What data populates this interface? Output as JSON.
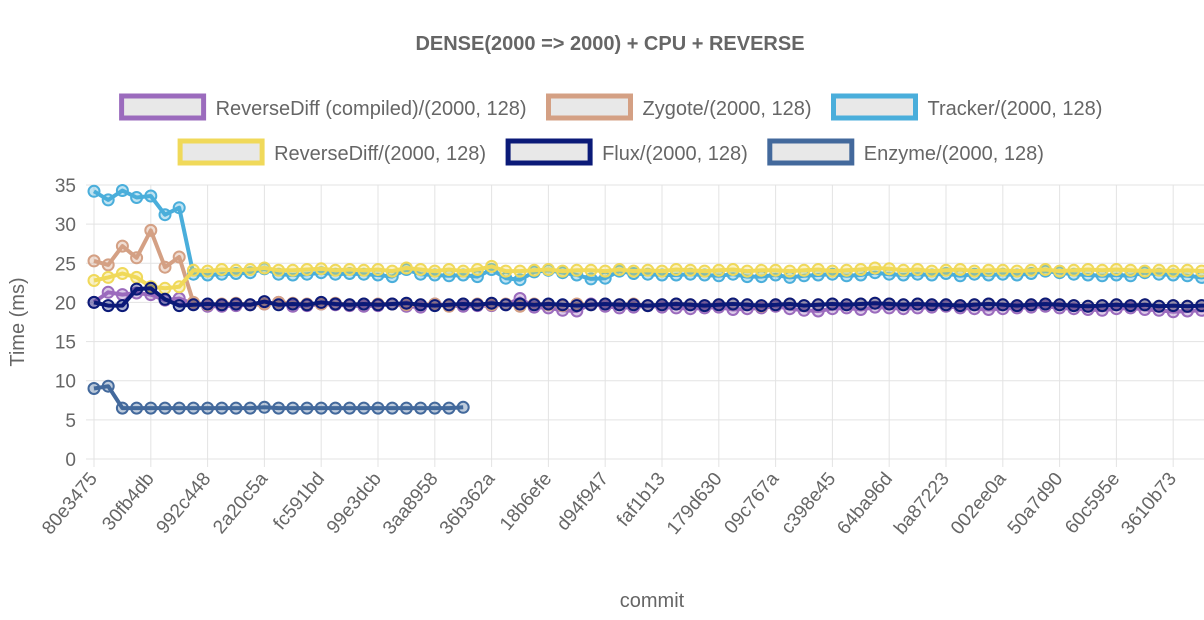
{
  "chart_data": {
    "type": "line",
    "title": "DENSE(2000 => 2000) + CPU + REVERSE",
    "xlabel": "commit",
    "ylabel": "Time (ms)",
    "ylim": [
      0,
      35
    ],
    "yticks": [
      0,
      5,
      10,
      15,
      20,
      25,
      30,
      35
    ],
    "grid": true,
    "legend_position": "top",
    "x_tick_labels": [
      "80e3475",
      "30fb4db",
      "992c448",
      "2a20c5a",
      "fc591bd",
      "99e3dcb",
      "3aa8958",
      "36b362a",
      "18b6efe",
      "d94f947",
      "faf1b13",
      "179d630",
      "09c767a",
      "c398e45",
      "64ba96d",
      "ba87223",
      "002ee0a",
      "50a7d90",
      "60c595e",
      "3610b73"
    ],
    "series": [
      {
        "name": "ReverseDiff (compiled)/(2000, 128)",
        "color": "#9b6bbd",
        "values": [
          20.0,
          21.3,
          21.0,
          21.2,
          21.0,
          20.3,
          20.5,
          19.8,
          19.5,
          19.5,
          19.6,
          19.7,
          19.8,
          20.0,
          19.5,
          19.6,
          19.8,
          19.7,
          19.6,
          19.5,
          19.6,
          19.8,
          19.5,
          19.4,
          19.8,
          19.6,
          19.5,
          19.6,
          19.6,
          19.7,
          20.5,
          19.4,
          19.3,
          19.0,
          18.9,
          19.8,
          19.5,
          19.3,
          19.4,
          19.6,
          19.4,
          19.3,
          19.2,
          19.3,
          19.4,
          19.1,
          19.2,
          19.3,
          19.5,
          19.2,
          19.0,
          18.9,
          19.2,
          19.3,
          19.1,
          19.4,
          19.3,
          19.2,
          19.3,
          19.4,
          19.5,
          19.3,
          19.2,
          19.1,
          19.2,
          19.3,
          19.4,
          19.5,
          19.3,
          19.2,
          19.1,
          19.0,
          19.2,
          19.3,
          19.1,
          19.0,
          18.8,
          18.9,
          19.0,
          18.9,
          18.8,
          19.5,
          19.0,
          19.2,
          19.0
        ]
      },
      {
        "name": "Zygote/(2000, 128)",
        "color": "#d4a084",
        "values": [
          25.3,
          24.8,
          27.2,
          25.7,
          29.2,
          24.5,
          25.8,
          20.0,
          19.7,
          19.8,
          19.9,
          19.7,
          19.8,
          20.0,
          19.9,
          19.8,
          19.8,
          19.9,
          19.7,
          19.8,
          19.8,
          19.8,
          19.7,
          19.7,
          19.8,
          19.5,
          19.8,
          19.8,
          19.7,
          19.8,
          19.5,
          19.8,
          19.7,
          19.6,
          19.8,
          19.7,
          19.8,
          19.7,
          19.8,
          19.6,
          19.7,
          19.8,
          19.7,
          19.6,
          19.7,
          19.8,
          19.7,
          19.5,
          19.7,
          19.8,
          19.6,
          19.7,
          19.8,
          19.7,
          19.8,
          19.9,
          19.8,
          19.7,
          19.8,
          19.7,
          19.7,
          19.6,
          19.7,
          19.8,
          19.7,
          19.6,
          19.7,
          19.8,
          19.7,
          19.6,
          19.5,
          19.6,
          19.7,
          19.6,
          19.7,
          19.5,
          19.6,
          19.5,
          19.6,
          19.6,
          19.5,
          19.6,
          19.7,
          19.6,
          19.6
        ]
      },
      {
        "name": "Tracker/(2000, 128)",
        "color": "#4aaedb",
        "values": [
          34.2,
          33.1,
          34.3,
          33.4,
          33.6,
          31.2,
          32.1,
          23.6,
          23.5,
          23.6,
          23.7,
          23.8,
          24.3,
          23.6,
          23.5,
          23.6,
          23.8,
          23.6,
          23.7,
          23.6,
          23.5,
          23.3,
          24.2,
          23.6,
          23.5,
          23.4,
          23.5,
          23.3,
          24.2,
          23.1,
          22.9,
          23.9,
          24.1,
          23.8,
          23.5,
          23.0,
          23.1,
          24.0,
          23.7,
          23.6,
          23.5,
          23.5,
          23.6,
          23.5,
          23.4,
          23.6,
          23.3,
          23.3,
          23.5,
          23.2,
          23.4,
          23.5,
          23.6,
          23.4,
          23.5,
          23.8,
          23.6,
          23.5,
          23.6,
          23.5,
          23.7,
          23.4,
          23.6,
          23.5,
          23.6,
          23.5,
          23.7,
          24.0,
          23.8,
          23.6,
          23.5,
          23.4,
          23.5,
          23.4,
          23.8,
          23.6,
          23.5,
          23.4,
          23.2,
          23.5,
          23.4,
          23.6,
          23.2,
          23.4,
          23.3
        ]
      },
      {
        "name": "ReverseDiff/(2000, 128)",
        "color": "#f0d95a",
        "values": [
          22.8,
          23.2,
          23.7,
          23.2,
          22.0,
          21.8,
          22.0,
          24.1,
          24.0,
          24.2,
          24.1,
          24.2,
          24.4,
          24.1,
          24.1,
          24.2,
          24.3,
          24.1,
          24.2,
          24.1,
          24.2,
          24.0,
          24.4,
          24.2,
          24.0,
          24.2,
          24.0,
          24.2,
          24.6,
          24.0,
          24.0,
          24.1,
          24.2,
          24.0,
          24.1,
          24.1,
          24.0,
          24.2,
          24.0,
          24.1,
          24.0,
          24.2,
          24.1,
          24.0,
          24.1,
          24.2,
          24.0,
          24.1,
          24.1,
          24.0,
          24.1,
          24.2,
          24.0,
          24.1,
          24.2,
          24.4,
          24.3,
          24.1,
          24.2,
          24.0,
          24.1,
          24.2,
          24.0,
          24.1,
          24.1,
          24.0,
          24.1,
          24.2,
          24.0,
          24.1,
          24.2,
          24.1,
          24.2,
          24.1,
          24.0,
          24.1,
          24.0,
          24.1,
          24.0,
          24.1,
          24.0,
          24.1,
          24.0,
          24.1,
          24.0
        ]
      },
      {
        "name": "Flux/(2000, 128)",
        "color": "#0b1a78",
        "values": [
          20.0,
          19.6,
          19.6,
          21.7,
          21.8,
          20.4,
          19.6,
          19.7,
          19.8,
          19.7,
          19.8,
          19.7,
          20.1,
          19.7,
          19.8,
          19.7,
          20.0,
          19.8,
          19.7,
          19.8,
          19.7,
          19.8,
          19.9,
          19.7,
          19.6,
          19.7,
          19.8,
          19.7,
          19.9,
          19.7,
          19.8,
          19.7,
          19.8,
          19.7,
          19.6,
          19.7,
          19.8,
          19.7,
          19.7,
          19.6,
          19.7,
          19.8,
          19.7,
          19.6,
          19.7,
          19.8,
          19.7,
          19.6,
          19.7,
          19.8,
          19.6,
          19.7,
          19.8,
          19.7,
          19.8,
          19.9,
          19.8,
          19.7,
          19.8,
          19.7,
          19.7,
          19.6,
          19.7,
          19.8,
          19.7,
          19.6,
          19.7,
          19.8,
          19.7,
          19.6,
          19.5,
          19.6,
          19.7,
          19.6,
          19.7,
          19.5,
          19.6,
          19.5,
          19.6,
          19.6,
          19.5,
          19.6,
          19.7,
          19.6,
          19.6
        ]
      },
      {
        "name": "Enzyme/(2000, 128)",
        "color": "#43699c",
        "values": [
          9.0,
          9.3,
          6.5,
          6.5,
          6.5,
          6.5,
          6.5,
          6.5,
          6.5,
          6.5,
          6.5,
          6.5,
          6.6,
          6.5,
          6.5,
          6.5,
          6.5,
          6.5,
          6.5,
          6.5,
          6.5,
          6.5,
          6.5,
          6.5,
          6.5,
          6.5,
          6.6
        ]
      }
    ]
  }
}
